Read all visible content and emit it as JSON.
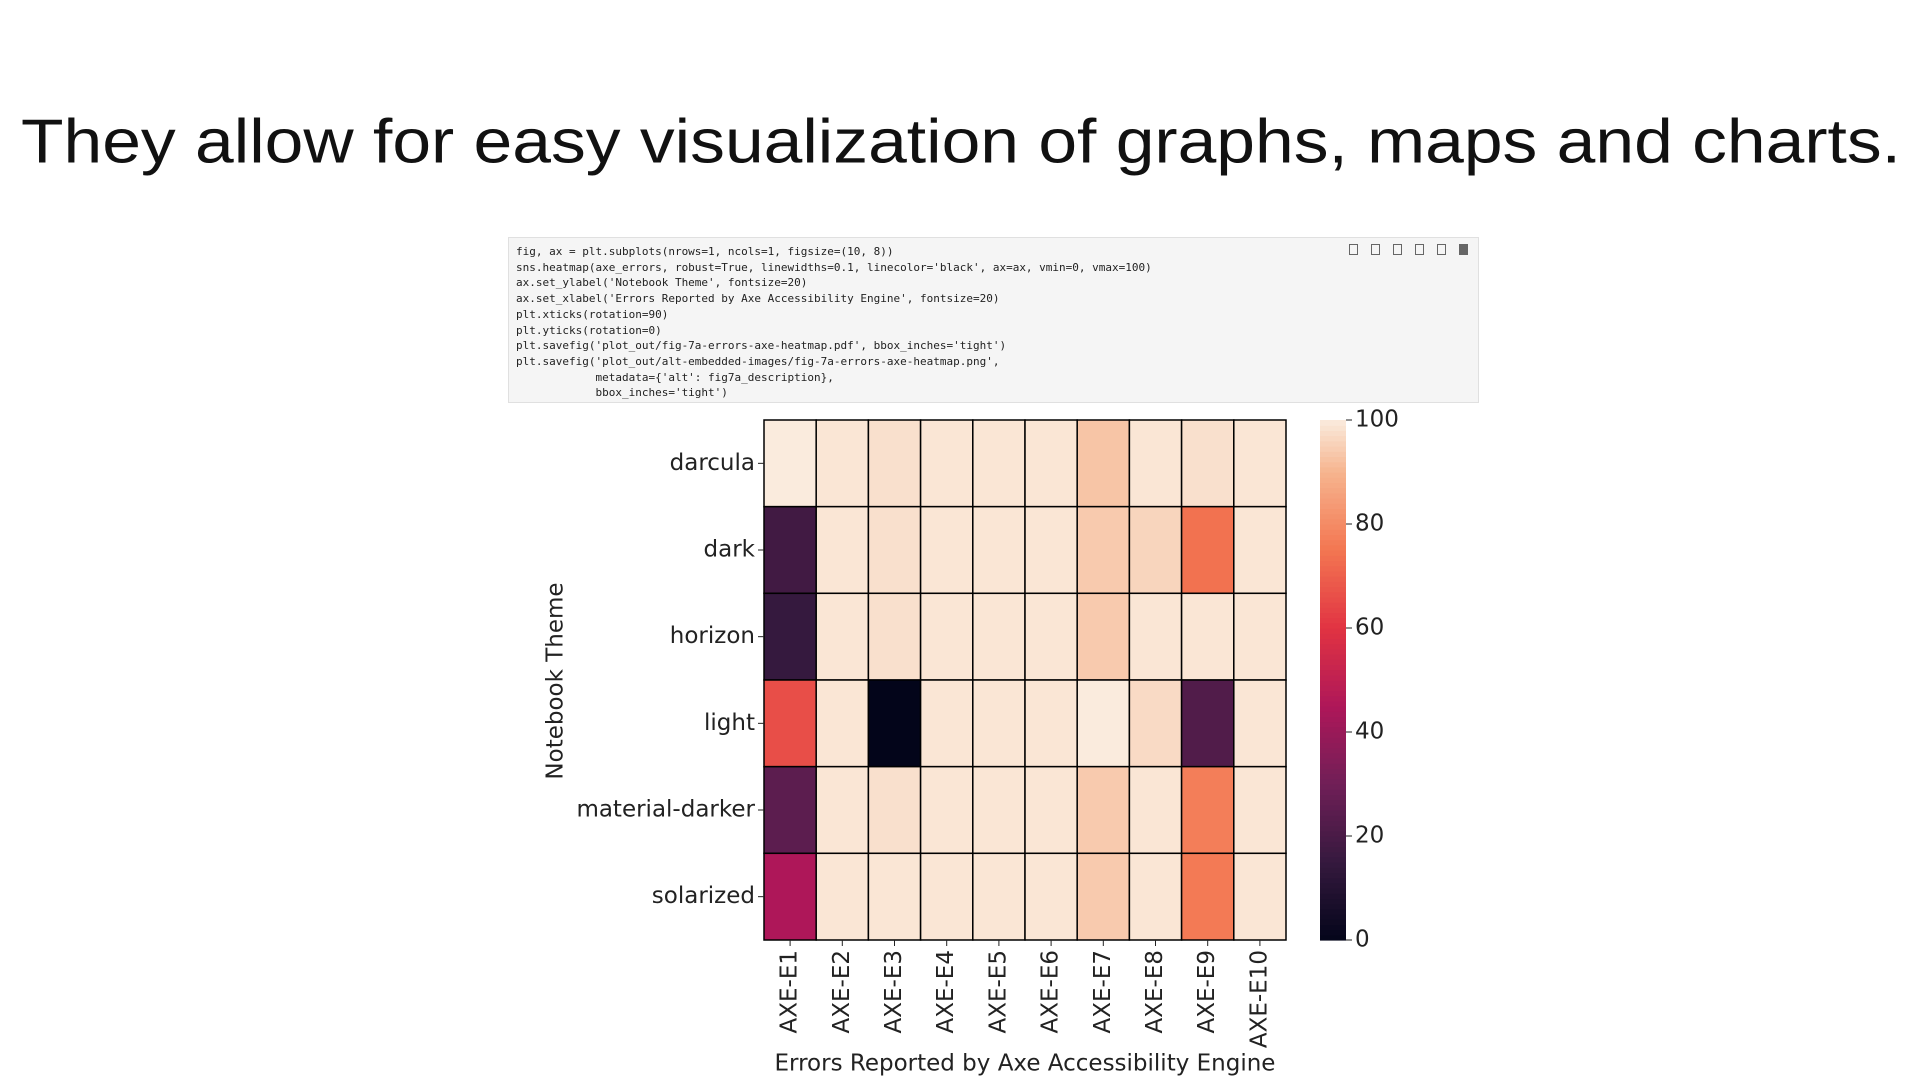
{
  "slide_title": "They allow for easy visualization of graphs, maps and charts.",
  "code": [
    "fig, ax = plt.subplots(nrows=1, ncols=1, figsize=(10, 8))",
    "sns.heatmap(axe_errors, robust=True, linewidths=0.1, linecolor='black', ax=ax, vmin=0, vmax=100)",
    "ax.set_ylabel('Notebook Theme', fontsize=20)",
    "ax.set_xlabel('Errors Reported by Axe Accessibility Engine', fontsize=20)",
    "plt.xticks(rotation=90)",
    "plt.yticks(rotation=0)",
    "plt.savefig('plot_out/fig-7a-errors-axe-heatmap.pdf', bbox_inches='tight')",
    "plt.savefig('plot_out/alt-embedded-images/fig-7a-errors-axe-heatmap.png',",
    "            metadata={'alt': fig7a_description},",
    "            bbox_inches='tight')"
  ],
  "chart_data": {
    "type": "heatmap",
    "x_label": "Errors Reported by Axe Accessibility Engine",
    "y_label": "Notebook Theme",
    "categories": [
      "AXE-E1",
      "AXE-E2",
      "AXE-E3",
      "AXE-E4",
      "AXE-E5",
      "AXE-E6",
      "AXE-E7",
      "AXE-E8",
      "AXE-E9",
      "AXE-E10"
    ],
    "rows": [
      "darcula",
      "dark",
      "horizon",
      "light",
      "material-darker",
      "solarized"
    ],
    "values": [
      [
        100,
        99,
        98,
        99,
        99,
        99,
        93,
        99,
        98,
        99
      ],
      [
        18,
        99,
        98,
        99,
        99,
        99,
        94,
        96,
        74,
        99
      ],
      [
        15,
        99,
        98,
        99,
        99,
        99,
        94,
        99,
        99,
        99
      ],
      [
        66,
        99,
        0,
        99,
        99,
        99,
        100,
        97,
        22,
        99
      ],
      [
        25,
        99,
        98,
        99,
        99,
        99,
        94,
        99,
        77,
        99
      ],
      [
        45,
        99,
        99,
        99,
        99,
        99,
        94,
        99,
        76,
        99
      ]
    ],
    "colormap": "rocket",
    "zlim": [
      0,
      100
    ],
    "zticks": [
      0,
      20,
      40,
      60,
      80,
      100
    ]
  }
}
